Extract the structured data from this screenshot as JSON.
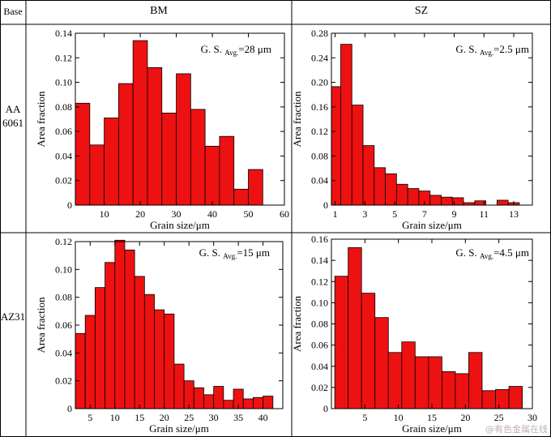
{
  "table": {
    "corner": "Base",
    "col_headers": [
      "BM",
      "SZ"
    ],
    "row_headers": [
      "AA 6061",
      "AZ31"
    ],
    "row0_line1": "AA",
    "row0_line2": "6061",
    "row1": "AZ31"
  },
  "colors": {
    "bar_fill": "#ee1111",
    "bar_stroke": "#000000",
    "grid_line": "#000000"
  },
  "watermark": "@有色金属在线",
  "chart_data": [
    {
      "type": "bar",
      "panel": "AA6061-BM",
      "xlabel": "Grain size/μm",
      "ylabel": "Area fraction",
      "annotation": {
        "prefix": "G. S.",
        "sub": "Avg.",
        "value": "=28 μm"
      },
      "xlim": [
        2,
        60
      ],
      "ylim": [
        0,
        0.14
      ],
      "xticks": [
        10,
        20,
        30,
        40,
        50,
        60
      ],
      "yticks": [
        0,
        0.02,
        0.04,
        0.06,
        0.08,
        0.1,
        0.12,
        0.14
      ],
      "ytick_labels": [
        "0",
        "0.02",
        "0.04",
        "0.06",
        "0.08",
        "0.10",
        "0.12",
        "0.14"
      ],
      "bins_start": 2,
      "bin_width": 4,
      "values": [
        0.083,
        0.049,
        0.071,
        0.099,
        0.134,
        0.112,
        0.075,
        0.107,
        0.078,
        0.048,
        0.056,
        0.013,
        0.029
      ]
    },
    {
      "type": "bar",
      "panel": "AA6061-SZ",
      "xlabel": "Grain size/μm",
      "ylabel": "Area fraction",
      "annotation": {
        "prefix": "G. S.",
        "sub": "Avg.",
        "value": "=2.5 μm"
      },
      "xlim": [
        0.75,
        14.25
      ],
      "ylim": [
        0,
        0.28
      ],
      "xticks": [
        1,
        3,
        5,
        7,
        9,
        11,
        13
      ],
      "yticks": [
        0,
        0.04,
        0.08,
        0.12,
        0.16,
        0.2,
        0.24,
        0.28
      ],
      "ytick_labels": [
        "0",
        "0.04",
        "0.08",
        "0.12",
        "0.16",
        "0.20",
        "0.24",
        "0.28"
      ],
      "bins_start": 1,
      "bin_width": 0.5,
      "values": [
        0.193,
        0.262,
        0.163,
        0.097,
        0.061,
        0.051,
        0.034,
        0.027,
        0.023,
        0.016,
        0.013,
        0.012,
        0.004,
        0.007,
        0.0,
        0.008,
        0.004
      ],
      "bin_width_units": 0.75
    },
    {
      "type": "bar",
      "panel": "AZ31-BM",
      "xlabel": "Grain size/μm",
      "ylabel": "Area fraction",
      "annotation": {
        "prefix": "G. S.",
        "sub": "Avg.",
        "value": "=15 μm"
      },
      "xlim": [
        2,
        44
      ],
      "ylim": [
        0,
        0.12
      ],
      "xticks": [
        5,
        10,
        15,
        20,
        25,
        30,
        35,
        40
      ],
      "yticks": [
        0,
        0.02,
        0.04,
        0.06,
        0.08,
        0.1,
        0.12
      ],
      "ytick_labels": [
        "0",
        "0.02",
        "0.04",
        "0.06",
        "0.08",
        "0.10",
        "0.12"
      ],
      "bins_start": 2,
      "bin_width": 2,
      "values": [
        0.054,
        0.067,
        0.087,
        0.105,
        0.121,
        0.114,
        0.095,
        0.082,
        0.071,
        0.068,
        0.032,
        0.02,
        0.015,
        0.01,
        0.016,
        0.006,
        0.014,
        0.007,
        0.008,
        0.009
      ]
    },
    {
      "type": "bar",
      "panel": "AZ31-SZ",
      "xlabel": "Grain size/μm",
      "ylabel": "Area fraction",
      "annotation": {
        "prefix": "G. S.",
        "sub": "Avg.",
        "value": "=4.5 μm"
      },
      "xlim": [
        0,
        30
      ],
      "ylim": [
        0,
        0.16
      ],
      "xticks": [
        5,
        10,
        15,
        20,
        25,
        30
      ],
      "yticks": [
        0,
        0.02,
        0.04,
        0.06,
        0.08,
        0.1,
        0.12,
        0.14,
        0.16
      ],
      "ytick_labels": [
        "0",
        "0.02",
        "0.04",
        "0.06",
        "0.08",
        "0.10",
        "0.12",
        "0.14",
        "0.16"
      ],
      "bins_start": 1,
      "bin_width": 2,
      "values": [
        0.125,
        0.152,
        0.109,
        0.086,
        0.053,
        0.063,
        0.049,
        0.049,
        0.035,
        0.033,
        0.053,
        0.017,
        0.018,
        0.021
      ]
    }
  ]
}
